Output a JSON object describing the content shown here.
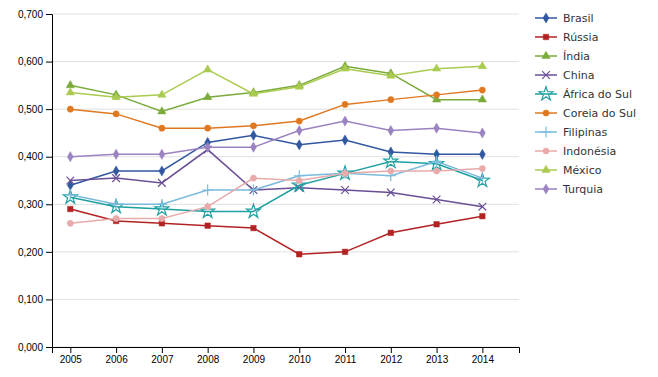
{
  "chart_data": {
    "type": "line",
    "x": [
      2005,
      2006,
      2007,
      2008,
      2009,
      2010,
      2011,
      2012,
      2013,
      2014
    ],
    "series": [
      {
        "name": "Brasil",
        "color": "#3157A0",
        "marker": "diamond",
        "values": [
          0.34,
          0.37,
          0.37,
          0.43,
          0.445,
          0.425,
          0.435,
          0.41,
          0.405,
          0.405
        ]
      },
      {
        "name": "Rússia",
        "color": "#B22222",
        "marker": "square",
        "values": [
          0.29,
          0.265,
          0.26,
          0.255,
          0.25,
          0.195,
          0.2,
          0.24,
          0.258,
          0.275
        ]
      },
      {
        "name": "Índia",
        "color": "#7AAA3A",
        "marker": "triangle",
        "values": [
          0.55,
          0.53,
          0.495,
          0.525,
          0.535,
          0.55,
          0.59,
          0.575,
          0.52,
          0.52
        ]
      },
      {
        "name": "China",
        "color": "#6A4F96",
        "marker": "x",
        "values": [
          0.35,
          0.355,
          0.345,
          0.415,
          0.33,
          0.335,
          0.33,
          0.325,
          0.31,
          0.295
        ]
      },
      {
        "name": "África do Sul",
        "color": "#20A0A0",
        "marker": "star",
        "values": [
          0.315,
          0.295,
          0.29,
          0.285,
          0.285,
          0.34,
          0.365,
          0.39,
          0.385,
          0.35
        ]
      },
      {
        "name": "Coreia do Sul",
        "color": "#E07820",
        "marker": "circle",
        "values": [
          0.5,
          0.49,
          0.46,
          0.46,
          0.465,
          0.475,
          0.51,
          0.52,
          0.53,
          0.54
        ]
      },
      {
        "name": "Filipinas",
        "color": "#7ABADD",
        "marker": "plus",
        "values": [
          0.32,
          0.3,
          0.3,
          0.33,
          0.33,
          0.36,
          0.365,
          0.36,
          0.39,
          0.355
        ]
      },
      {
        "name": "Indonésia",
        "color": "#E8AAAA",
        "marker": "circle",
        "values": [
          0.26,
          0.27,
          0.27,
          0.295,
          0.355,
          0.35,
          0.365,
          0.37,
          0.37,
          0.375
        ]
      },
      {
        "name": "México",
        "color": "#AACB50",
        "marker": "triangle",
        "values": [
          0.535,
          0.525,
          0.53,
          0.583,
          0.532,
          0.547,
          0.585,
          0.57,
          0.585,
          0.59
        ]
      },
      {
        "name": "Turquia",
        "color": "#9B82C0",
        "marker": "diamond",
        "values": [
          0.4,
          0.405,
          0.405,
          0.42,
          0.42,
          0.455,
          0.475,
          0.455,
          0.46,
          0.45
        ]
      }
    ],
    "xlim": [
      2004.6,
      2014.8
    ],
    "xticks": [
      2005,
      2006,
      2007,
      2008,
      2009,
      2010,
      2011,
      2012,
      2013,
      2014
    ],
    "ylim": [
      0.0,
      0.7
    ],
    "yticks": [
      {
        "value": 0.0,
        "label": "0,000"
      },
      {
        "value": 0.1,
        "label": "0,100"
      },
      {
        "value": 0.2,
        "label": "0,200"
      },
      {
        "value": 0.3,
        "label": "0,300"
      },
      {
        "value": 0.4,
        "label": "0,400"
      },
      {
        "value": 0.5,
        "label": "0,500"
      },
      {
        "value": 0.6,
        "label": "0,600"
      },
      {
        "value": 0.7,
        "label": "0,700"
      }
    ],
    "grid": true,
    "legend": "right"
  }
}
